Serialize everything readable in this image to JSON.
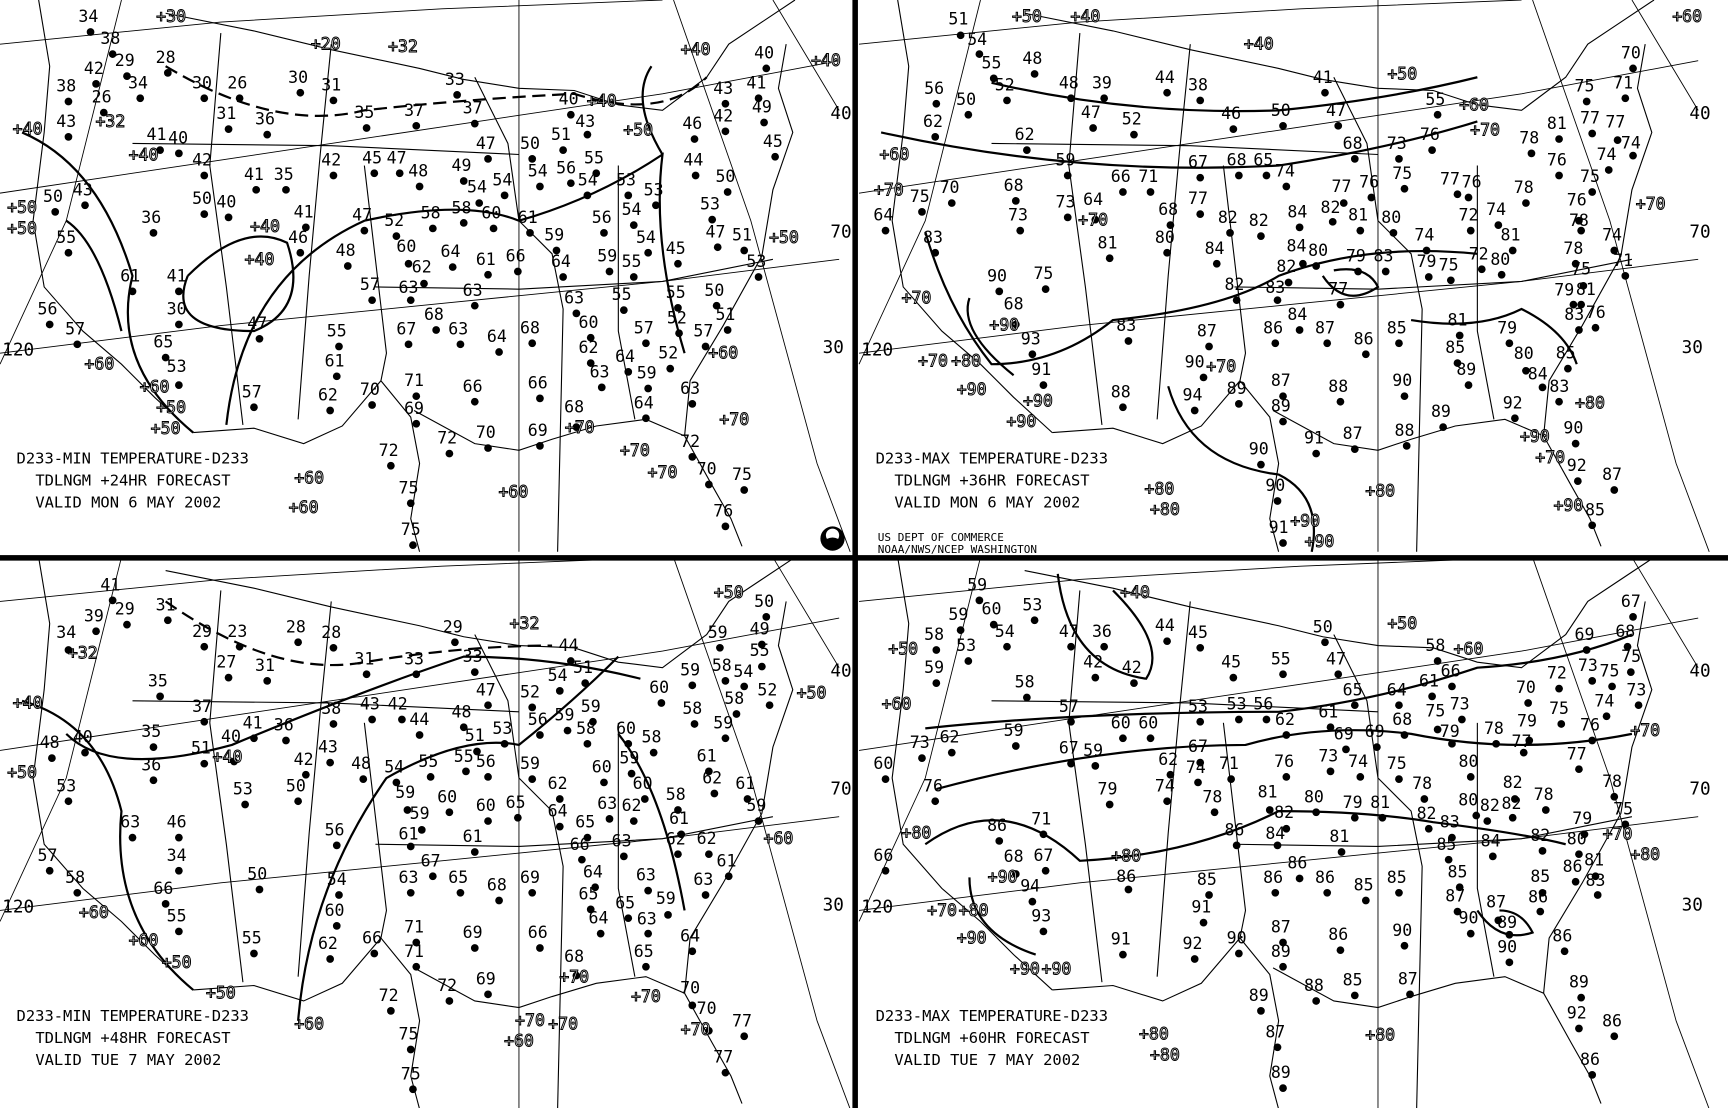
{
  "credit": {
    "line1": "US DEPT OF COMMERCE",
    "line2": "NOAA/NWS/NCEP WASHINGTON",
    "logo": "NOAA"
  },
  "grid_labels": [
    "120",
    "40",
    "70",
    "30"
  ],
  "panels": [
    {
      "title": [
        "D233-MIN TEMPERATURE-D233",
        "TDLNGM +24HR FORECAST",
        "VALID MON  6 MAY 2002"
      ],
      "stations": [
        "34",
        "38",
        "29",
        "28",
        "42",
        "38",
        "26",
        "34",
        "43",
        "30",
        "26",
        "31",
        "36",
        "30",
        "31",
        "33",
        "35",
        "37",
        "37",
        "40",
        "43",
        "46",
        "42",
        "43",
        "41",
        "40",
        "49",
        "45",
        "41",
        "40",
        "42",
        "41",
        "35",
        "50",
        "40",
        "43",
        "50",
        "55",
        "36",
        "41",
        "46",
        "42",
        "45",
        "47",
        "48",
        "49",
        "47",
        "50",
        "51",
        "55",
        "56",
        "54",
        "53",
        "44",
        "50",
        "53",
        "54",
        "56",
        "53",
        "47",
        "51",
        "53",
        "45",
        "54",
        "55",
        "59",
        "59",
        "64",
        "66",
        "61",
        "64",
        "62",
        "60",
        "52",
        "58",
        "58",
        "60",
        "61",
        "54",
        "54",
        "54",
        "47",
        "48",
        "61",
        "41",
        "30",
        "47",
        "56",
        "57",
        "65",
        "53",
        "63",
        "57",
        "68",
        "67",
        "63",
        "63",
        "64",
        "68",
        "55",
        "61",
        "62",
        "70",
        "71",
        "69",
        "57",
        "66",
        "66",
        "62",
        "63",
        "57",
        "52",
        "52",
        "55",
        "55",
        "50",
        "51",
        "57",
        "60",
        "63",
        "64",
        "59",
        "63",
        "64",
        "69",
        "68",
        "70",
        "72",
        "72",
        "75",
        "75",
        "72",
        "70",
        "75",
        "76"
      ],
      "labels": [
        "+30",
        "+20",
        "+32",
        "+40",
        "+40",
        "+40",
        "+50",
        "+40",
        "+40",
        "+50",
        "+50",
        "+40",
        "+40",
        "+60",
        "+60",
        "+50",
        "+50",
        "+60",
        "+70",
        "+70",
        "+70",
        "+70",
        "+60",
        "+60",
        "+60",
        "+50",
        "+32"
      ]
    },
    {
      "title": [
        "D233-MAX TEMPERATURE-D233",
        "TDLNGM +36HR FORECAST",
        "VALID MON  6 MAY 2002"
      ],
      "stations": [
        "51",
        "54",
        "55",
        "52",
        "56",
        "50",
        "48",
        "48",
        "39",
        "44",
        "38",
        "47",
        "52",
        "46",
        "50",
        "41",
        "47",
        "55",
        "62",
        "62",
        "59",
        "66",
        "71",
        "67",
        "68",
        "65",
        "74",
        "68",
        "73",
        "76",
        "75",
        "77",
        "76",
        "80",
        "81",
        "82",
        "84",
        "82",
        "82",
        "77",
        "68",
        "80",
        "81",
        "64",
        "73",
        "68",
        "73",
        "70",
        "75",
        "64",
        "83",
        "75",
        "90",
        "68",
        "93",
        "91",
        "83",
        "84",
        "84",
        "82",
        "80",
        "79",
        "83",
        "77",
        "82",
        "83",
        "84",
        "87",
        "86",
        "87",
        "86",
        "85",
        "90",
        "85",
        "89",
        "88",
        "90",
        "94",
        "89",
        "87",
        "89",
        "88",
        "91",
        "87",
        "88",
        "89",
        "90",
        "90",
        "91",
        "92",
        "83",
        "90",
        "92",
        "87",
        "85",
        "81",
        "79",
        "80",
        "84",
        "85",
        "83",
        "76",
        "79",
        "81",
        "75",
        "78",
        "71",
        "74",
        "78",
        "76",
        "72",
        "74",
        "81",
        "80",
        "72",
        "75",
        "79",
        "74",
        "76",
        "77",
        "78",
        "76",
        "78",
        "81",
        "75",
        "77",
        "71",
        "70",
        "74",
        "74",
        "75",
        "77"
      ],
      "labels": [
        "+50",
        "+40",
        "+60",
        "+40",
        "+50",
        "+60",
        "+70",
        "+60",
        "+70",
        "+70",
        "+70",
        "+70",
        "+90",
        "+70",
        "+80",
        "+90",
        "+90",
        "+90",
        "+80",
        "+90",
        "+70",
        "+80",
        "+80",
        "+80",
        "+90",
        "+90",
        "+90",
        "+70"
      ]
    },
    {
      "title": [
        "D233-MIN TEMPERATURE-D233",
        "TDLNGM +48HR FORECAST",
        "VALID TUE  7 MAY 2002"
      ],
      "stations": [
        "41",
        "29",
        "31",
        "39",
        "34",
        "29",
        "23",
        "27",
        "28",
        "28",
        "31",
        "29",
        "31",
        "33",
        "33",
        "44",
        "51",
        "50",
        "49",
        "55",
        "54",
        "58",
        "59",
        "59",
        "52",
        "58",
        "59",
        "61",
        "62",
        "61",
        "59",
        "60",
        "58",
        "58",
        "60",
        "59",
        "60",
        "58",
        "61",
        "62",
        "62",
        "61",
        "63",
        "64",
        "63",
        "63",
        "62",
        "63",
        "60",
        "65",
        "62",
        "64",
        "66",
        "64",
        "65",
        "64",
        "65",
        "63",
        "59",
        "65",
        "54",
        "59",
        "59",
        "58",
        "56",
        "52",
        "47",
        "53",
        "56",
        "51",
        "48",
        "55",
        "42",
        "43",
        "44",
        "38",
        "55",
        "54",
        "59",
        "60",
        "59",
        "60",
        "65",
        "59",
        "48",
        "43",
        "42",
        "41",
        "40",
        "37",
        "36",
        "35",
        "51",
        "40",
        "48",
        "53",
        "35",
        "36",
        "50",
        "53",
        "46",
        "63",
        "34",
        "57",
        "58",
        "50",
        "66",
        "55",
        "56",
        "61",
        "67",
        "54",
        "63",
        "65",
        "68",
        "69",
        "61",
        "60",
        "66",
        "71",
        "71",
        "62",
        "55",
        "69",
        "66",
        "68",
        "72",
        "72",
        "69",
        "75",
        "75",
        "70",
        "70",
        "77",
        "77"
      ],
      "labels": [
        "+32",
        "+32",
        "+40",
        "+40",
        "+50",
        "+60",
        "+60",
        "+50",
        "+50",
        "+60",
        "+70",
        "+70",
        "+70",
        "+60",
        "+70",
        "+70",
        "+60",
        "+50",
        "+50"
      ]
    },
    {
      "title": [
        "D233-MAX TEMPERATURE-D233",
        "TDLNGM +60HR FORECAST",
        "VALID TUE  7 MAY 2002"
      ],
      "stations": [
        "59",
        "60",
        "59",
        "53",
        "53",
        "54",
        "58",
        "59",
        "47",
        "36",
        "42",
        "42",
        "44",
        "45",
        "45",
        "55",
        "50",
        "47",
        "58",
        "67",
        "68",
        "69",
        "73",
        "75",
        "72",
        "75",
        "73",
        "70",
        "74",
        "75",
        "76",
        "58",
        "57",
        "59",
        "62",
        "73",
        "60",
        "67",
        "59",
        "60",
        "60",
        "53",
        "53",
        "56",
        "62",
        "61",
        "65",
        "64",
        "61",
        "66",
        "68",
        "69",
        "69",
        "73",
        "74",
        "75",
        "74",
        "71",
        "67",
        "62",
        "76",
        "75",
        "73",
        "79",
        "78",
        "79",
        "77",
        "80",
        "82",
        "80",
        "82",
        "82",
        "78",
        "77",
        "78",
        "75",
        "79",
        "80",
        "81",
        "86",
        "83",
        "82",
        "85",
        "86",
        "84",
        "85",
        "85",
        "87",
        "87",
        "89",
        "90",
        "90",
        "86",
        "89",
        "92",
        "86",
        "86",
        "76",
        "71",
        "79",
        "74",
        "78",
        "81",
        "82",
        "80",
        "79",
        "81",
        "82",
        "83",
        "78",
        "86",
        "67",
        "94",
        "93",
        "86",
        "86",
        "84",
        "81",
        "86",
        "86",
        "85",
        "86",
        "85",
        "85",
        "91",
        "92",
        "90",
        "87",
        "89",
        "86",
        "88",
        "85",
        "87",
        "90",
        "91",
        "89",
        "87",
        "89",
        "66",
        "68"
      ],
      "labels": [
        "+40",
        "+50",
        "+60",
        "+50",
        "+60",
        "+70",
        "+80",
        "+80",
        "+70",
        "+90",
        "+80",
        "+70",
        "+80",
        "+90",
        "+90",
        "+80",
        "+80",
        "+80",
        "+90"
      ]
    }
  ]
}
